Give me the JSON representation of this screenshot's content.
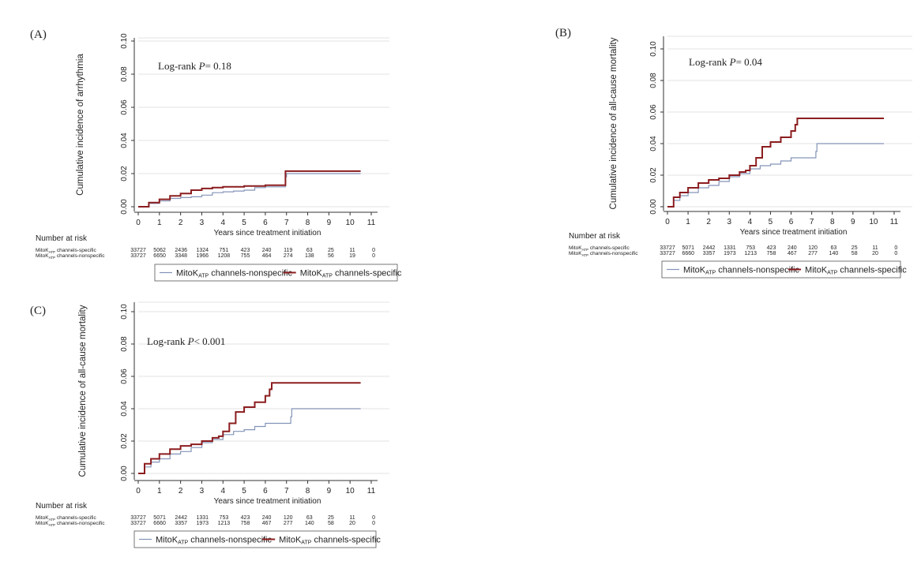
{
  "colors": {
    "nonspecific": "#8394b8",
    "specific": "#8b1d1f",
    "axis": "#333333",
    "grid": "#e3e3e3",
    "text": "#222222"
  },
  "shared": {
    "y_ticks": [
      "0.00",
      "0.02",
      "0.04",
      "0.06",
      "0.08",
      "0.10"
    ],
    "x_ticks": [
      "0",
      "1",
      "2",
      "3",
      "4",
      "5",
      "6",
      "7",
      "8",
      "9",
      "10",
      "11"
    ],
    "xlabel": "Years since treatment initiation",
    "risk_title": "Number at risk",
    "risk_label_specific": "MitoKATP channels-specific",
    "risk_label_nonspecific": "MitoKATP channels-nonspecific",
    "legend_nonspecific": "MitoKATP channels-nonspecific",
    "legend_specific": "MitoKATP channels-specific"
  },
  "chart_data": [
    {
      "panel": "(A)",
      "type": "line",
      "ylabel": "Cumulative incidence of  arrhythmia",
      "xlabel": "Years since treatment initiation",
      "xlim": [
        0,
        11
      ],
      "ylim": [
        0,
        0.1
      ],
      "grid": true,
      "annotation": {
        "prefix": "Log-rank ",
        "italic": "P",
        "suffix": "= 0.18"
      },
      "series": [
        {
          "name": "MitoKATP channels-nonspecific",
          "x": [
            0,
            0.5,
            1,
            1.5,
            2,
            2.5,
            3,
            3.5,
            4,
            4.5,
            5,
            5.5,
            6,
            6.9,
            6.95,
            7,
            10.5
          ],
          "y": [
            0,
            0.002,
            0.0035,
            0.005,
            0.0055,
            0.006,
            0.007,
            0.0085,
            0.009,
            0.0095,
            0.01,
            0.0115,
            0.012,
            0.012,
            0.018,
            0.02,
            0.02
          ]
        },
        {
          "name": "MitoKATP channels-specific",
          "x": [
            0,
            0.5,
            1,
            1.5,
            2,
            2.5,
            3,
            3.5,
            4,
            4.5,
            5,
            6,
            6.9,
            6.95,
            10.5
          ],
          "y": [
            0,
            0.0025,
            0.0045,
            0.0065,
            0.008,
            0.01,
            0.011,
            0.0115,
            0.012,
            0.012,
            0.0125,
            0.013,
            0.013,
            0.0215,
            0.0215
          ]
        }
      ],
      "risk_table": {
        "specific": [
          "33727",
          "5062",
          "2436",
          "1324",
          "751",
          "423",
          "240",
          "119",
          "63",
          "25",
          "11",
          "0"
        ],
        "nonspecific": [
          "33727",
          "6650",
          "3348",
          "1966",
          "1208",
          "755",
          "464",
          "274",
          "138",
          "56",
          "19",
          "0"
        ]
      }
    },
    {
      "panel": "(B)",
      "type": "line",
      "ylabel": "Cumulative incidence of all-cause mortality",
      "xlabel": "Years since treatment initiation",
      "xlim": [
        0,
        11
      ],
      "ylim": [
        0,
        0.1
      ],
      "grid": true,
      "annotation": {
        "prefix": "Log-rank ",
        "italic": "P",
        "suffix": "= 0.04"
      },
      "series": [
        {
          "name": "MitoKATP channels-nonspecific",
          "x": [
            0,
            0.3,
            0.6,
            1,
            1.5,
            2,
            2.5,
            3,
            3.5,
            4,
            4.5,
            5,
            5.5,
            6,
            7,
            7.2,
            7.25,
            10.5
          ],
          "y": [
            0,
            0.004,
            0.007,
            0.009,
            0.012,
            0.0135,
            0.016,
            0.019,
            0.021,
            0.024,
            0.026,
            0.027,
            0.029,
            0.031,
            0.031,
            0.035,
            0.04,
            0.04
          ]
        },
        {
          "name": "MitoKATP channels-specific",
          "x": [
            0,
            0.3,
            0.6,
            1,
            1.5,
            2,
            2.5,
            3,
            3.5,
            3.8,
            4,
            4.3,
            4.6,
            5,
            5.5,
            6,
            6.2,
            6.3,
            10.5
          ],
          "y": [
            0,
            0.006,
            0.009,
            0.012,
            0.015,
            0.017,
            0.018,
            0.02,
            0.022,
            0.023,
            0.026,
            0.031,
            0.038,
            0.041,
            0.044,
            0.048,
            0.052,
            0.056,
            0.056
          ]
        }
      ],
      "risk_table": {
        "specific": [
          "33727",
          "5071",
          "2442",
          "1331",
          "753",
          "423",
          "240",
          "120",
          "63",
          "25",
          "11",
          "0"
        ],
        "nonspecific": [
          "33727",
          "6660",
          "3357",
          "1973",
          "1213",
          "758",
          "467",
          "277",
          "140",
          "58",
          "20",
          "0"
        ]
      }
    },
    {
      "panel": "(C)",
      "type": "line",
      "ylabel": "Cumulative incidence of all-cause mortality",
      "xlabel": "Years since treatment initiation",
      "xlim": [
        0,
        11
      ],
      "ylim": [
        0,
        0.1
      ],
      "grid": true,
      "annotation": {
        "prefix": "Log-rank ",
        "italic": "P",
        "suffix": "< 0.001"
      },
      "series": [
        {
          "name": "MitoKATP channels-nonspecific",
          "x": [
            0,
            0.3,
            0.6,
            1,
            1.5,
            2,
            2.5,
            3,
            3.5,
            4,
            4.5,
            5,
            5.5,
            6,
            7,
            7.2,
            7.25,
            10.5
          ],
          "y": [
            0,
            0.004,
            0.007,
            0.009,
            0.012,
            0.0135,
            0.016,
            0.019,
            0.021,
            0.024,
            0.026,
            0.027,
            0.029,
            0.031,
            0.031,
            0.035,
            0.04,
            0.04
          ]
        },
        {
          "name": "MitoKATP channels-specific",
          "x": [
            0,
            0.3,
            0.6,
            1,
            1.5,
            2,
            2.5,
            3,
            3.5,
            3.8,
            4,
            4.3,
            4.6,
            5,
            5.5,
            6,
            6.2,
            6.3,
            10.5
          ],
          "y": [
            0,
            0.006,
            0.009,
            0.012,
            0.015,
            0.017,
            0.018,
            0.02,
            0.022,
            0.023,
            0.026,
            0.031,
            0.038,
            0.041,
            0.044,
            0.048,
            0.052,
            0.056,
            0.056
          ]
        }
      ],
      "risk_table": {
        "specific": [
          "33727",
          "5071",
          "2442",
          "1331",
          "753",
          "423",
          "240",
          "120",
          "63",
          "25",
          "11",
          "0"
        ],
        "nonspecific": [
          "33727",
          "6660",
          "3357",
          "1973",
          "1213",
          "758",
          "467",
          "277",
          "140",
          "58",
          "20",
          "0"
        ]
      }
    }
  ]
}
